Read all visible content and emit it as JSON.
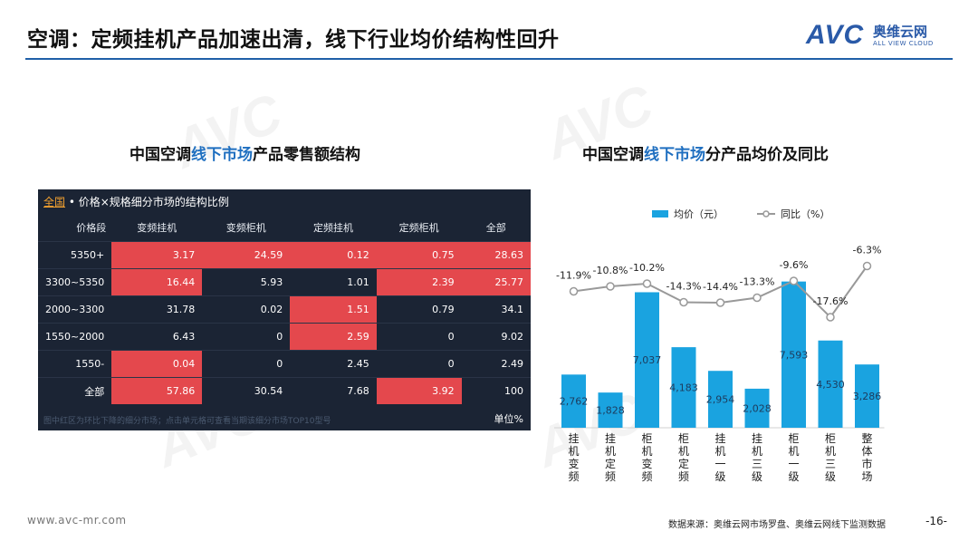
{
  "title": "空调：定频挂机产品加速出清，线下行业均价结构性回升",
  "logo": {
    "brand": "AVC",
    "cn": "奥维云网",
    "en": "ALL VIEW CLOUD"
  },
  "left": {
    "title_a": "中国空调",
    "title_b": "线下市场",
    "title_c": "产品零售额结构",
    "panel": {
      "head_all": "全国",
      "head_rest": " • 价格×规格细分市场的结构比例",
      "columns": [
        "价格段",
        "变频挂机",
        "变频柜机",
        "定频挂机",
        "定频柜机",
        "全部"
      ],
      "rows": [
        {
          "label": "5350+",
          "cells": [
            "3.17",
            "24.59",
            "0.12",
            "0.75",
            "28.63"
          ]
        },
        {
          "label": "3300~5350",
          "cells": [
            "16.44",
            "5.93",
            "1.01",
            "2.39",
            "25.77"
          ]
        },
        {
          "label": "2000~3300",
          "cells": [
            "31.78",
            "0.02",
            "1.51",
            "0.79",
            "34.1"
          ]
        },
        {
          "label": "1550~2000",
          "cells": [
            "6.43",
            "0",
            "2.59",
            "0",
            "9.02"
          ]
        },
        {
          "label": "1550-",
          "cells": [
            "0.04",
            "0",
            "2.45",
            "0",
            "2.49"
          ]
        },
        {
          "label": "全部",
          "cells": [
            "57.86",
            "30.54",
            "7.68",
            "3.92",
            "100"
          ]
        }
      ],
      "footnote": "图中红区为环比下降的细分市场；点击单元格可查看当期该细分市场TOP10型号",
      "unit": "单位%"
    }
  },
  "right": {
    "title_a": "中国空调",
    "title_b": "线下市场",
    "title_c": "分产品均价及同比"
  },
  "chart_data": {
    "type": "bar",
    "title": "中国空调线下市场分产品均价及同比",
    "categories": [
      "挂机变频",
      "挂机定频",
      "柜机变频",
      "柜机定频",
      "挂机一级",
      "挂机三级",
      "柜机一级",
      "柜机三级",
      "整体市场"
    ],
    "series": [
      {
        "name": "均价（元）",
        "type": "bar",
        "color": "#1aa3e0",
        "values": [
          2762,
          1828,
          7037,
          4183,
          2954,
          2028,
          7593,
          4530,
          3286
        ],
        "labels": [
          "2,762",
          "1,828",
          "7,037",
          "4,183",
          "2,954",
          "2,028",
          "7,593",
          "4,530",
          "3,286"
        ]
      },
      {
        "name": "同比（%）",
        "type": "line",
        "color": "#999999",
        "values": [
          -11.9,
          -10.8,
          -10.2,
          -14.3,
          -14.4,
          -13.3,
          -9.6,
          -17.6,
          -6.3
        ],
        "labels": [
          "-11.9%",
          "-10.8%",
          "-10.2%",
          "-14.3%",
          "-14.4%",
          "-13.3%",
          "-9.6%",
          "-17.6%",
          "-6.3%"
        ]
      }
    ],
    "legend_position": "top"
  },
  "footer": {
    "url": "www.avc-mr.com",
    "source": "数据来源：奥维云网市场罗盘、奥维云网线下监测数据",
    "page": "-16-"
  }
}
